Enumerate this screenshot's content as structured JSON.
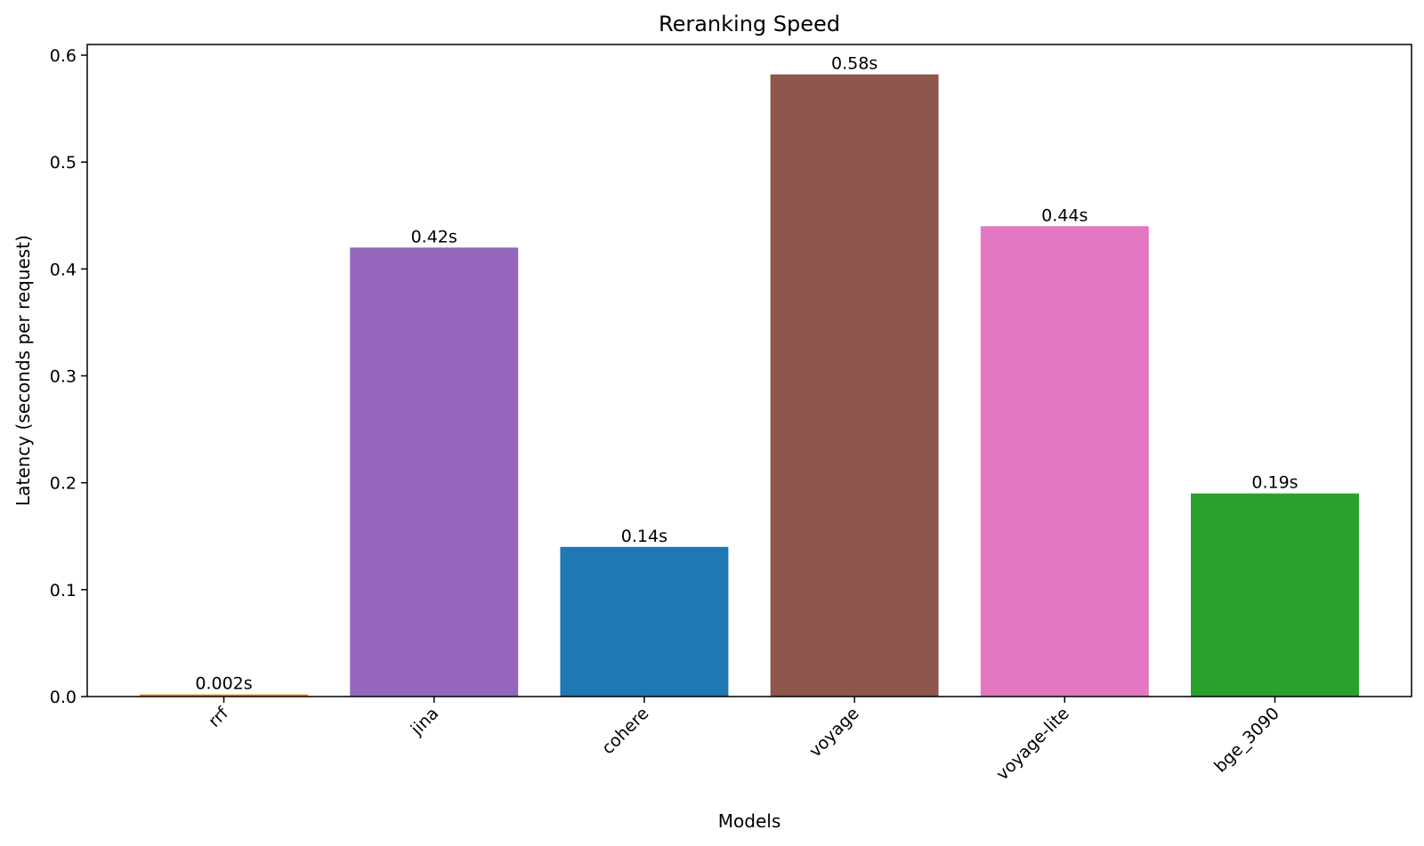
{
  "chart_data": {
    "type": "bar",
    "title": "Reranking Speed",
    "xlabel": "Models",
    "ylabel": "Latency (seconds per request)",
    "categories": [
      "rrf",
      "jina",
      "cohere",
      "voyage",
      "voyage-lite",
      "bge_3090"
    ],
    "values": [
      0.002,
      0.42,
      0.14,
      0.582,
      0.44,
      0.19
    ],
    "value_labels": [
      "0.002s",
      "0.42s",
      "0.14s",
      "0.58s",
      "0.44s",
      "0.19s"
    ],
    "colors": [
      "#ff7f0e",
      "#9467bd",
      "#1f77b4",
      "#8c564b",
      "#e377c2",
      "#2ca02c"
    ],
    "ylim": [
      0,
      0.61
    ],
    "yticks": [
      0.0,
      0.1,
      0.2,
      0.3,
      0.4,
      0.5,
      0.6
    ],
    "ytick_labels": [
      "0.0",
      "0.1",
      "0.2",
      "0.3",
      "0.4",
      "0.5",
      "0.6"
    ],
    "grid": false,
    "legend": "none"
  }
}
